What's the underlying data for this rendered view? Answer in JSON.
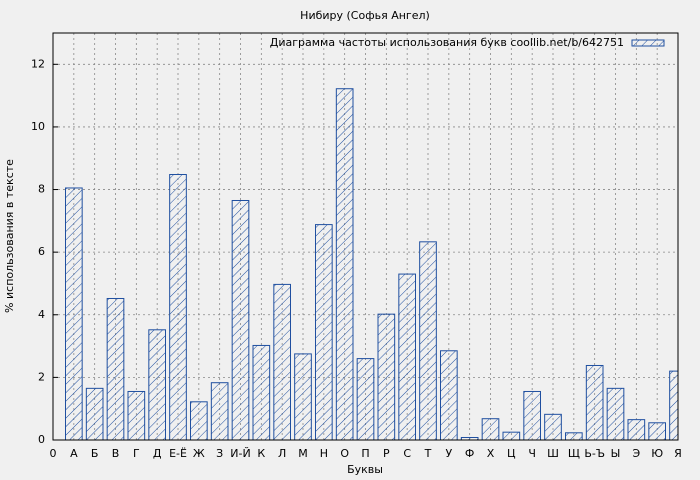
{
  "chart_data": {
    "type": "bar",
    "title": "Нибиру (Софья Ангел)",
    "x_label": "Буквы",
    "y_label": "% использования в тексте",
    "categories": [
      "0",
      "А",
      "Б",
      "В",
      "Г",
      "Д",
      "Е-Ё",
      "Ж",
      "З",
      "И-Й",
      "К",
      "Л",
      "М",
      "Н",
      "О",
      "П",
      "Р",
      "С",
      "Т",
      "У",
      "Ф",
      "Х",
      "Ц",
      "Ч",
      "Ш",
      "Щ",
      "Ь-Ъ",
      "Ы",
      "Э",
      "Ю",
      "Я"
    ],
    "series": [
      {
        "name": "Диаграмма частоты использования букв coollib.net/b/642751",
        "color": "#1f4fa0",
        "values": [
          null,
          8.05,
          1.65,
          4.52,
          1.55,
          3.52,
          8.48,
          1.22,
          1.83,
          7.65,
          3.02,
          4.97,
          2.75,
          6.88,
          11.22,
          2.6,
          4.02,
          5.3,
          6.33,
          2.85,
          0.08,
          0.68,
          0.25,
          1.55,
          0.82,
          0.23,
          2.38,
          1.65,
          0.65,
          0.55,
          2.2
        ]
      }
    ],
    "ylim": [
      0,
      13
    ],
    "yticks": [
      0,
      2,
      4,
      6,
      8,
      10,
      12
    ],
    "grid": true,
    "legend": "top-right"
  }
}
